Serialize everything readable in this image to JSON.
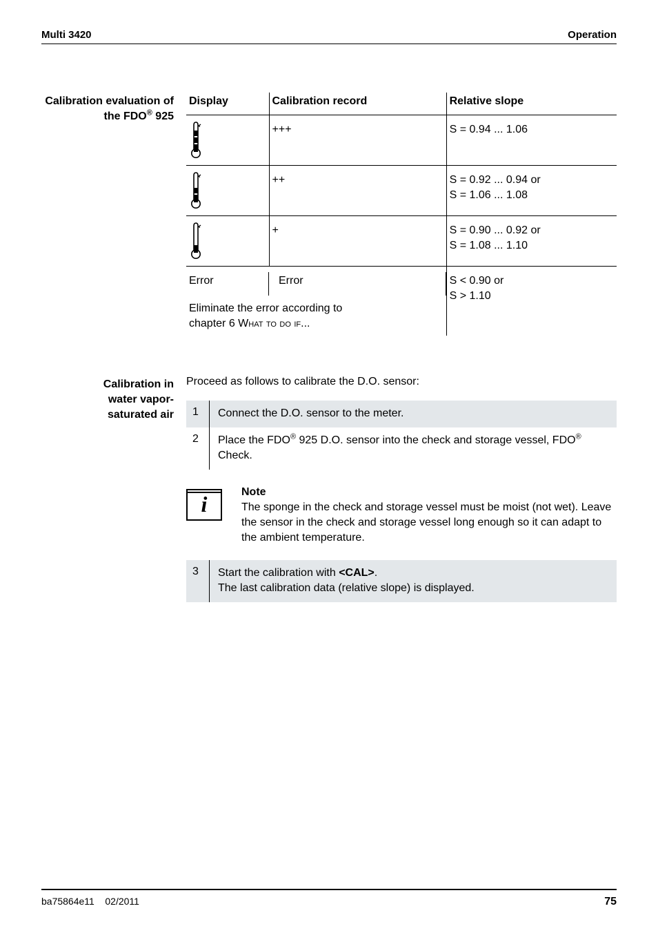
{
  "header": {
    "left": "Multi 3420",
    "right": "Operation"
  },
  "section1": {
    "side_label_line1": "Calibration evaluation of",
    "side_label_line2": "the FDO",
    "side_label_reg": "®",
    "side_label_line2b": " 925",
    "table": {
      "headers": [
        "Display",
        "Calibration record",
        "Relative slope"
      ],
      "rows": [
        {
          "icon_fill": 3,
          "record": "+++",
          "slope_lines": [
            "S = 0.94 ... 1.06"
          ]
        },
        {
          "icon_fill": 2,
          "record": "++",
          "slope_lines": [
            "S = 0.92 ... 0.94 or",
            "S = 1.06 ... 1.08"
          ]
        },
        {
          "icon_fill": 1,
          "record": "+",
          "slope_lines": [
            "S = 0.90 ... 0.92 or",
            "S = 1.08 ... 1.10"
          ]
        },
        {
          "error_display": "Error",
          "record": "Error",
          "slope_lines": [
            "S < 0.90 or",
            "S > 1.10"
          ],
          "note_line1": "Eliminate the error according to",
          "note_line2a": "chapter 6 W",
          "note_line2b": "hat to do if",
          "note_line2c": "..."
        }
      ]
    }
  },
  "section2": {
    "side_label_line1": "Calibration in",
    "side_label_line2": "water vapor-",
    "side_label_line3": "saturated air",
    "intro": "Proceed as follows to calibrate the D.O. sensor:",
    "steps": [
      {
        "n": "1",
        "text": "Connect the D.O. sensor to the meter."
      },
      {
        "n": "2",
        "text_pre": "Place the FDO",
        "reg1": "®",
        "text_mid": " 925 D.O. sensor into the check and storage vessel, FDO",
        "reg2": "®",
        "text_post": " Check."
      }
    ]
  },
  "note": {
    "heading": "Note",
    "body": "The sponge in the check and storage vessel must be moist (not wet). Leave the sensor in the check and storage vessel long enough so it can adapt to the ambient temperature."
  },
  "step3": {
    "n": "3",
    "line1_pre": "Start the calibration with ",
    "line1_bold": "<CAL>",
    "line1_post": ".",
    "line2": "The last calibration data (relative slope) is displayed."
  },
  "footer": {
    "left1": "ba75864e11",
    "left2": "02/2011",
    "page": "75"
  },
  "colors": {
    "shade": "#e3e7ea",
    "rule": "#000000"
  }
}
